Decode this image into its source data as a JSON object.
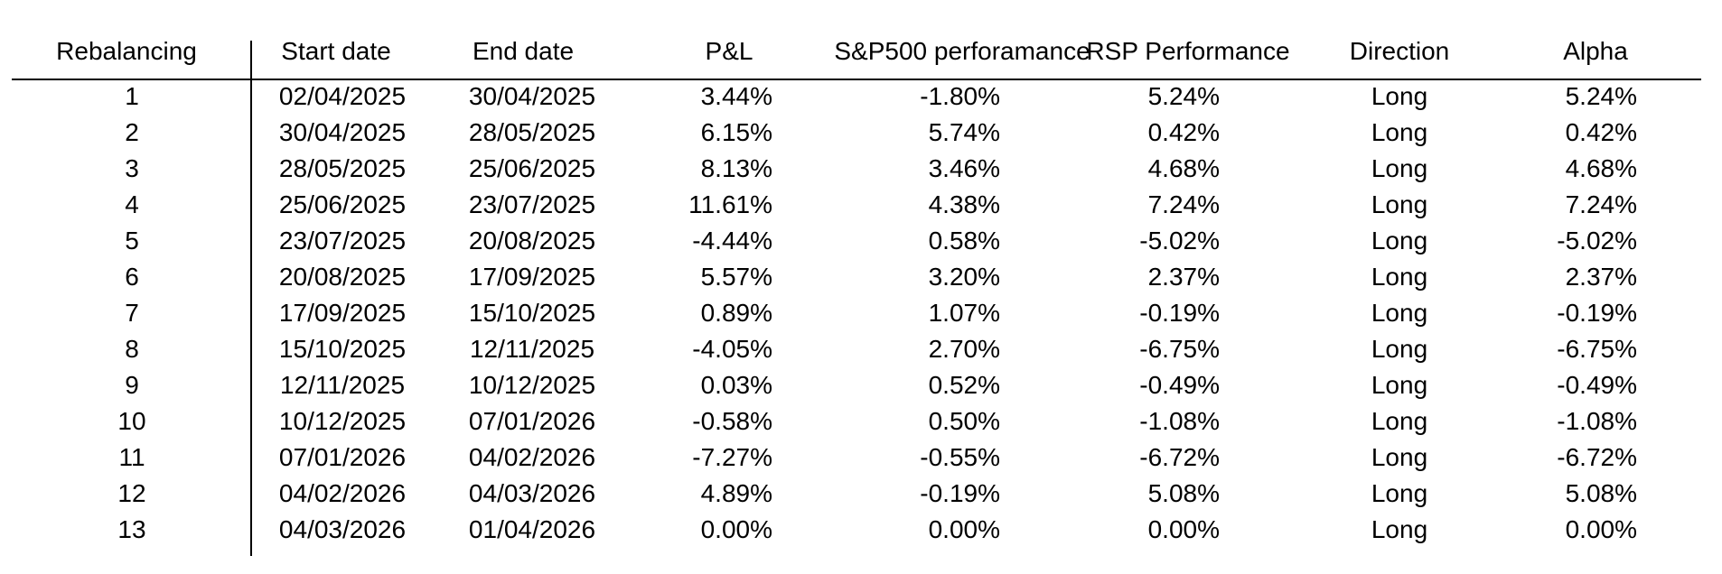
{
  "colors": {
    "background": "#ffffff",
    "text": "#000000",
    "rules": "#000000"
  },
  "table": {
    "columns": [
      "Rebalancing",
      "Start date",
      "End date",
      "P&L",
      "S&P500 perforamance",
      "RSP Performance",
      "Direction",
      "Alpha"
    ],
    "column_keys": [
      "rebalancing",
      "start-date",
      "end-date",
      "pnl",
      "sp500-performance",
      "rsp-performance",
      "direction",
      "alpha"
    ],
    "rows": [
      [
        "1",
        "02/04/2025",
        "30/04/2025",
        "3.44%",
        "-1.80%",
        "5.24%",
        "Long",
        "5.24%"
      ],
      [
        "2",
        "30/04/2025",
        "28/05/2025",
        "6.15%",
        "5.74%",
        "0.42%",
        "Long",
        "0.42%"
      ],
      [
        "3",
        "28/05/2025",
        "25/06/2025",
        "8.13%",
        "3.46%",
        "4.68%",
        "Long",
        "4.68%"
      ],
      [
        "4",
        "25/06/2025",
        "23/07/2025",
        "11.61%",
        "4.38%",
        "7.24%",
        "Long",
        "7.24%"
      ],
      [
        "5",
        "23/07/2025",
        "20/08/2025",
        "-4.44%",
        "0.58%",
        "-5.02%",
        "Long",
        "-5.02%"
      ],
      [
        "6",
        "20/08/2025",
        "17/09/2025",
        "5.57%",
        "3.20%",
        "2.37%",
        "Long",
        "2.37%"
      ],
      [
        "7",
        "17/09/2025",
        "15/10/2025",
        "0.89%",
        "1.07%",
        "-0.19%",
        "Long",
        "-0.19%"
      ],
      [
        "8",
        "15/10/2025",
        "12/11/2025",
        "-4.05%",
        "2.70%",
        "-6.75%",
        "Long",
        "-6.75%"
      ],
      [
        "9",
        "12/11/2025",
        "10/12/2025",
        "0.03%",
        "0.52%",
        "-0.49%",
        "Long",
        "-0.49%"
      ],
      [
        "10",
        "10/12/2025",
        "07/01/2026",
        "-0.58%",
        "0.50%",
        "-1.08%",
        "Long",
        "-1.08%"
      ],
      [
        "11",
        "07/01/2026",
        "04/02/2026",
        "-7.27%",
        "-0.55%",
        "-6.72%",
        "Long",
        "-6.72%"
      ],
      [
        "12",
        "04/02/2026",
        "04/03/2026",
        "4.89%",
        "-0.19%",
        "5.08%",
        "Long",
        "5.08%"
      ],
      [
        "13",
        "04/03/2026",
        "01/04/2026",
        "0.00%",
        "0.00%",
        "0.00%",
        "Long",
        "0.00%"
      ]
    ]
  }
}
